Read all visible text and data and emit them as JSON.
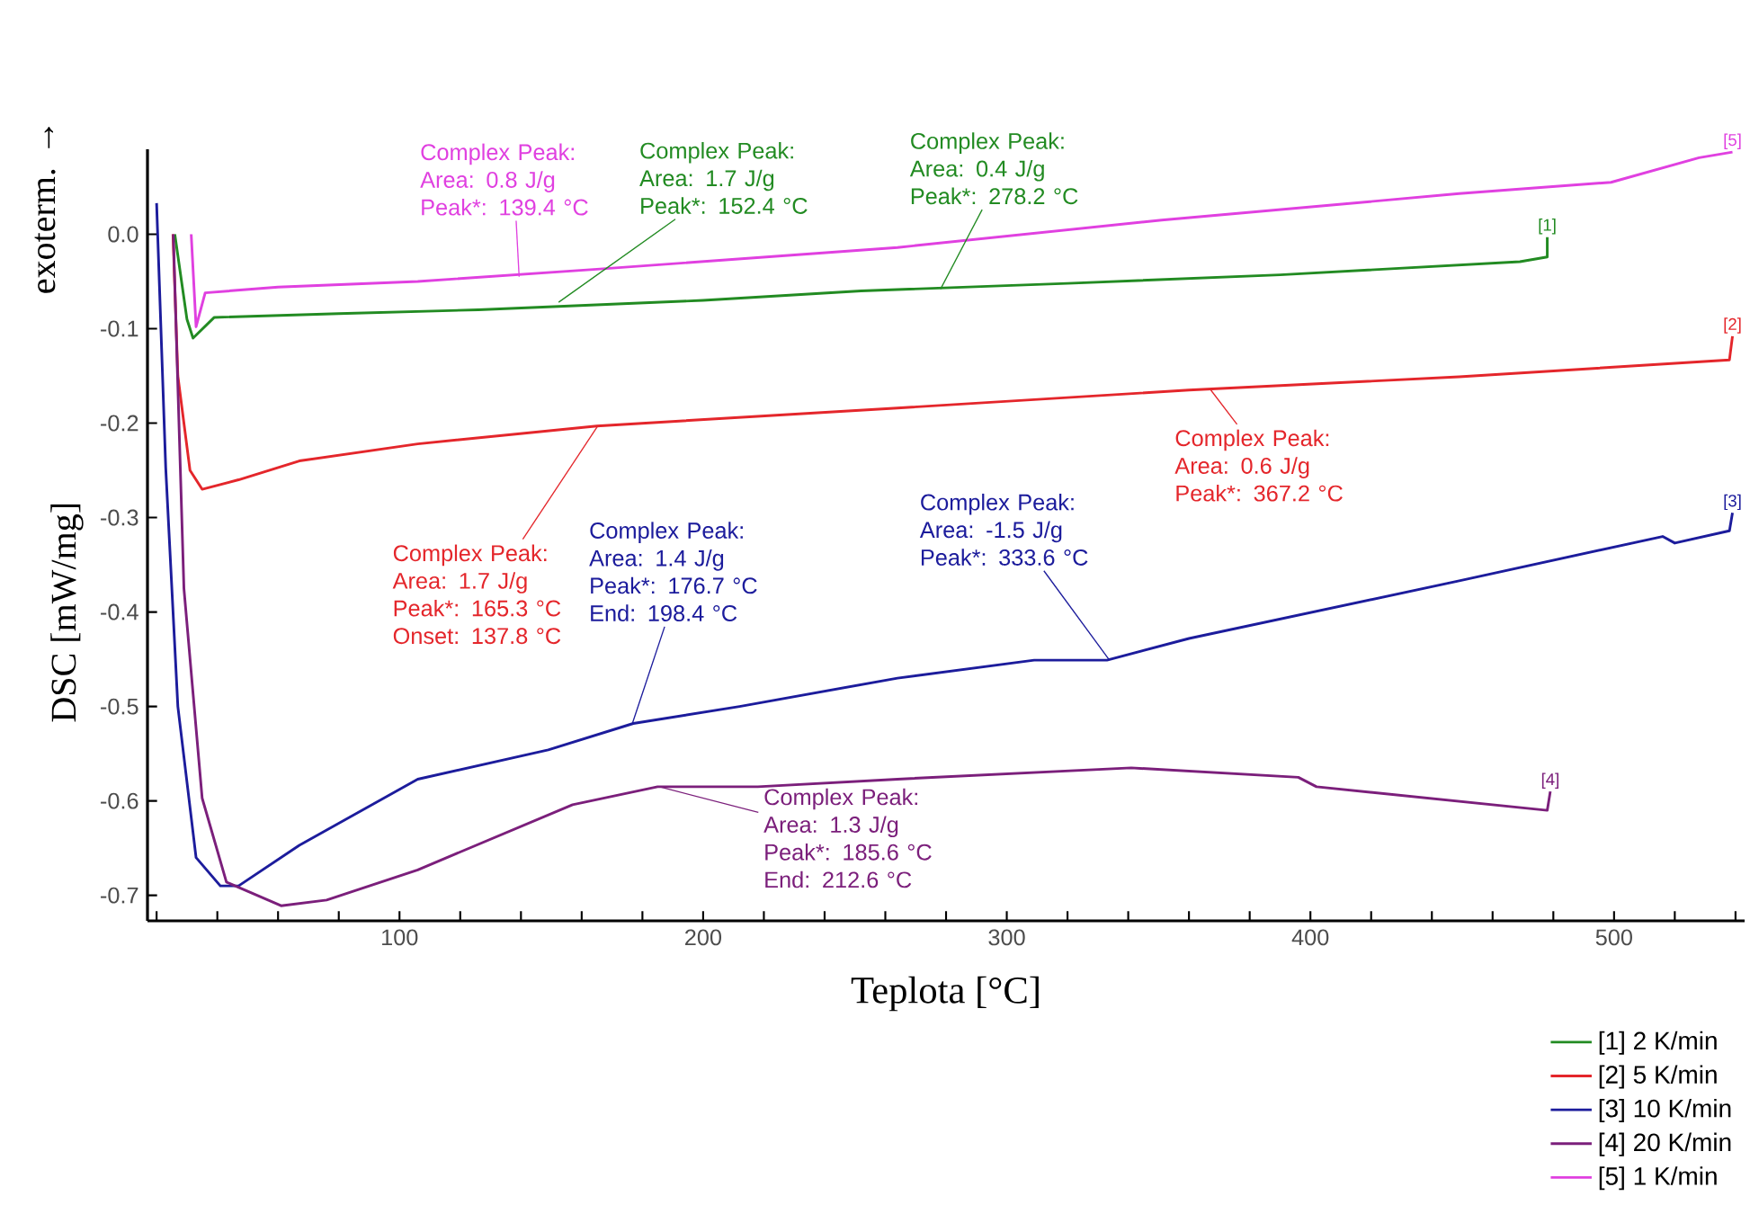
{
  "chart_data": {
    "type": "line",
    "xlabel": "Teplota [°C]",
    "ylabel": "DSC [mW/mg]",
    "xlim": [
      17,
      543
    ],
    "ylim": [
      -0.727,
      0.09
    ],
    "xticks": [
      {
        "value": 20,
        "label": null
      },
      {
        "value": 40,
        "label": null
      },
      {
        "value": 60,
        "label": null
      },
      {
        "value": 80,
        "label": null
      },
      100,
      {
        "value": 120,
        "label": null
      },
      {
        "value": 140,
        "label": null
      },
      {
        "value": 160,
        "label": null
      },
      {
        "value": 180,
        "label": null
      },
      200,
      {
        "value": 220,
        "label": null
      },
      {
        "value": 240,
        "label": null
      },
      {
        "value": 260,
        "label": null
      },
      {
        "value": 280,
        "label": null
      },
      300,
      {
        "value": 320,
        "label": null
      },
      {
        "value": 340,
        "label": null
      },
      {
        "value": 360,
        "label": null
      },
      {
        "value": 380,
        "label": null
      },
      400,
      {
        "value": 420,
        "label": null
      },
      {
        "value": 440,
        "label": null
      },
      {
        "value": 460,
        "label": null
      },
      {
        "value": 480,
        "label": null
      },
      500,
      {
        "value": 520,
        "label": null
      },
      {
        "value": 540,
        "label": null
      }
    ],
    "yticks": [
      -0.7,
      -0.6,
      -0.5,
      -0.4,
      -0.3,
      -0.2,
      -0.1,
      {
        "value": 0,
        "label": "0.0"
      }
    ],
    "grid": false,
    "legend": "bottom right",
    "marker": "none",
    "line_style": "solid",
    "series": [
      {
        "name": "[1] 2 K/min",
        "color": "#228b22",
        "x": [
          26,
          30,
          32,
          39,
          80,
          126,
          200,
          252,
          320,
          390,
          469,
          478,
          478
        ],
        "values": [
          0.0,
          -0.09,
          -0.11,
          -0.088,
          -0.084,
          -0.08,
          -0.07,
          -0.06,
          -0.052,
          -0.043,
          -0.029,
          -0.024,
          -0.003
        ]
      },
      {
        "name": "[2] 5 K/min",
        "color": "#e4262b",
        "x": [
          25.4,
          27,
          31,
          35,
          47,
          67,
          106,
          165,
          264,
          360,
          449,
          538,
          539
        ],
        "values": [
          0.0,
          -0.15,
          -0.25,
          -0.27,
          -0.26,
          -0.24,
          -0.222,
          -0.203,
          -0.184,
          -0.165,
          -0.151,
          -0.133,
          -0.108
        ]
      },
      {
        "name": "[3] 10 K/min",
        "color": "#1c1c9c",
        "x": [
          20,
          23,
          27,
          33,
          41,
          47,
          67,
          106,
          149,
          177,
          212,
          264,
          309,
          333,
          360,
          449,
          516,
          520,
          538,
          539
        ],
        "values": [
          0.033,
          -0.247,
          -0.5,
          -0.66,
          -0.69,
          -0.69,
          -0.647,
          -0.577,
          -0.546,
          -0.518,
          -0.5,
          -0.47,
          -0.451,
          -0.451,
          -0.428,
          -0.367,
          -0.32,
          -0.327,
          -0.314,
          -0.295
        ]
      },
      {
        "name": "[4] 20 K/min",
        "color": "#7b1f7b",
        "x": [
          25.5,
          29,
          35,
          43,
          61,
          76,
          106,
          157,
          185,
          218,
          264,
          341,
          396,
          402,
          478,
          479
        ],
        "values": [
          0.0,
          -0.375,
          -0.597,
          -0.686,
          -0.711,
          -0.705,
          -0.673,
          -0.604,
          -0.585,
          -0.585,
          -0.577,
          -0.565,
          -0.575,
          -0.585,
          -0.61,
          -0.59
        ]
      },
      {
        "name": "[5] 1 K/min",
        "color": "#e040e0",
        "x": [
          31.4,
          33,
          36,
          60,
          106,
          165,
          264,
          351,
          449,
          499,
          528,
          539
        ],
        "values": [
          0.0,
          -0.098,
          -0.062,
          -0.056,
          -0.05,
          -0.037,
          -0.014,
          0.015,
          0.043,
          0.055,
          0.081,
          0.087
        ]
      }
    ],
    "annotations": [
      {
        "text": "Complex Peak: Area: 0.8 J/g Peak*: 139.4 °C",
        "x": 139.4,
        "y": -0.045
      },
      {
        "text": "Complex Peak: Area: 1.7 J/g Peak*: 152.4 °C",
        "x": 152.4,
        "y": -0.072
      },
      {
        "text": "Complex Peak: Area: 0.4 J/g Peak*: 278.2 °C",
        "x": 278.2,
        "y": -0.058
      },
      {
        "text": "Complex Peak: Area: 1.7 J/g Peak*: 165.3 °C Onset: 137.8 °C",
        "x": 165.3,
        "y": -0.203
      },
      {
        "text": "Complex Peak: Area: 0.6 J/g Peak*: 367.2 °C",
        "x": 367.2,
        "y": -0.165
      },
      {
        "text": "Complex Peak: Area: 1.4 J/g Peak*: 176.7 °C End: 198.4 °C",
        "x": 176.7,
        "y": -0.518
      },
      {
        "text": "Complex Peak: Area: -1.5 J/g Peak*: 333.6 °C",
        "x": 333.6,
        "y": -0.45
      },
      {
        "text": "Complex Peak: Area: 1.3 J/g Peak*: 185.6 °C End: 212.6 °C",
        "x": 185.6,
        "y": -0.585
      },
      {
        "text": "[1]",
        "x": 478,
        "y": -0.003
      },
      {
        "text": "[2]",
        "x": 539,
        "y": -0.108
      },
      {
        "text": "[3]",
        "x": 539,
        "y": -0.295
      },
      {
        "text": "[4]",
        "x": 479,
        "y": -0.59
      },
      {
        "text": "[5]",
        "x": 539,
        "y": 0.087
      },
      "exoterm. →"
    ]
  }
}
